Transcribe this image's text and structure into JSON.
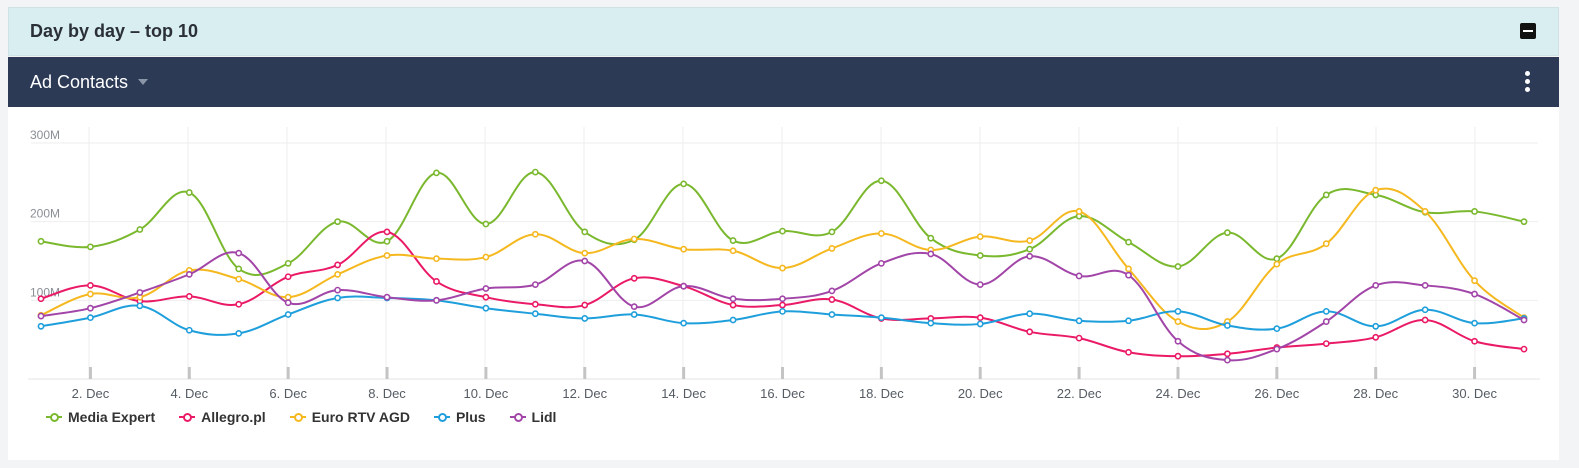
{
  "panel": {
    "title": "Day by day – top 10"
  },
  "toolbar": {
    "metric_label": "Ad Contacts"
  },
  "chart_data": {
    "type": "line",
    "x": [
      1,
      2,
      3,
      4,
      5,
      6,
      7,
      8,
      9,
      10,
      11,
      12,
      13,
      14,
      15,
      16,
      17,
      18,
      19,
      20,
      21,
      22,
      23,
      24,
      25,
      26,
      27,
      28,
      29,
      30,
      31
    ],
    "xtick_labels": [
      "2. Dec",
      "4. Dec",
      "6. Dec",
      "8. Dec",
      "10. Dec",
      "12. Dec",
      "14. Dec",
      "16. Dec",
      "18. Dec",
      "20. Dec",
      "22. Dec",
      "24. Dec",
      "26. Dec",
      "28. Dec",
      "30. Dec"
    ],
    "xtick_values": [
      2,
      4,
      6,
      8,
      10,
      12,
      14,
      16,
      18,
      20,
      22,
      24,
      26,
      28,
      30
    ],
    "ylim": [
      0,
      300
    ],
    "yticks": [
      100,
      200,
      300
    ],
    "ytick_labels": [
      "100M",
      "200M",
      "300M"
    ],
    "grid": true,
    "legend_position": "bottom-left",
    "series": [
      {
        "name": "Media Expert",
        "color": "#7ab82e",
        "values": [
          175,
          168,
          190,
          237,
          140,
          147,
          200,
          175,
          262,
          197,
          263,
          187,
          177,
          248,
          176,
          188,
          187,
          252,
          179,
          157,
          165,
          207,
          174,
          143,
          186,
          153,
          234,
          234,
          212,
          213,
          200
        ]
      },
      {
        "name": "Allegro.pl",
        "color": "#ea1a66",
        "values": [
          102,
          119,
          99,
          105,
          95,
          130,
          145,
          187,
          124,
          104,
          95,
          94,
          128,
          118,
          94,
          94,
          101,
          77,
          77,
          78,
          60,
          52,
          34,
          29,
          32,
          40,
          45,
          53,
          75,
          48,
          38
        ]
      },
      {
        "name": "Euro RTV AGD",
        "color": "#f5b81f",
        "values": [
          81,
          108,
          104,
          138,
          127,
          104,
          133,
          157,
          153,
          155,
          184,
          160,
          178,
          165,
          163,
          141,
          166,
          185,
          164,
          181,
          176,
          213,
          140,
          73,
          73,
          146,
          172,
          240,
          213,
          125,
          78
        ]
      },
      {
        "name": "Plus",
        "color": "#1e9fdc",
        "values": [
          67,
          78,
          93,
          62,
          58,
          82,
          103,
          103,
          100,
          90,
          83,
          77,
          82,
          71,
          75,
          86,
          82,
          78,
          71,
          70,
          83,
          74,
          74,
          86,
          68,
          64,
          86,
          67,
          88,
          71,
          77
        ]
      },
      {
        "name": "Lidl",
        "color": "#a245a8",
        "values": [
          80,
          90,
          110,
          133,
          160,
          97,
          113,
          104,
          100,
          115,
          120,
          150,
          92,
          118,
          102,
          102,
          112,
          147,
          159,
          120,
          156,
          131,
          132,
          48,
          24,
          38,
          73,
          119,
          119,
          108,
          75
        ]
      }
    ]
  }
}
